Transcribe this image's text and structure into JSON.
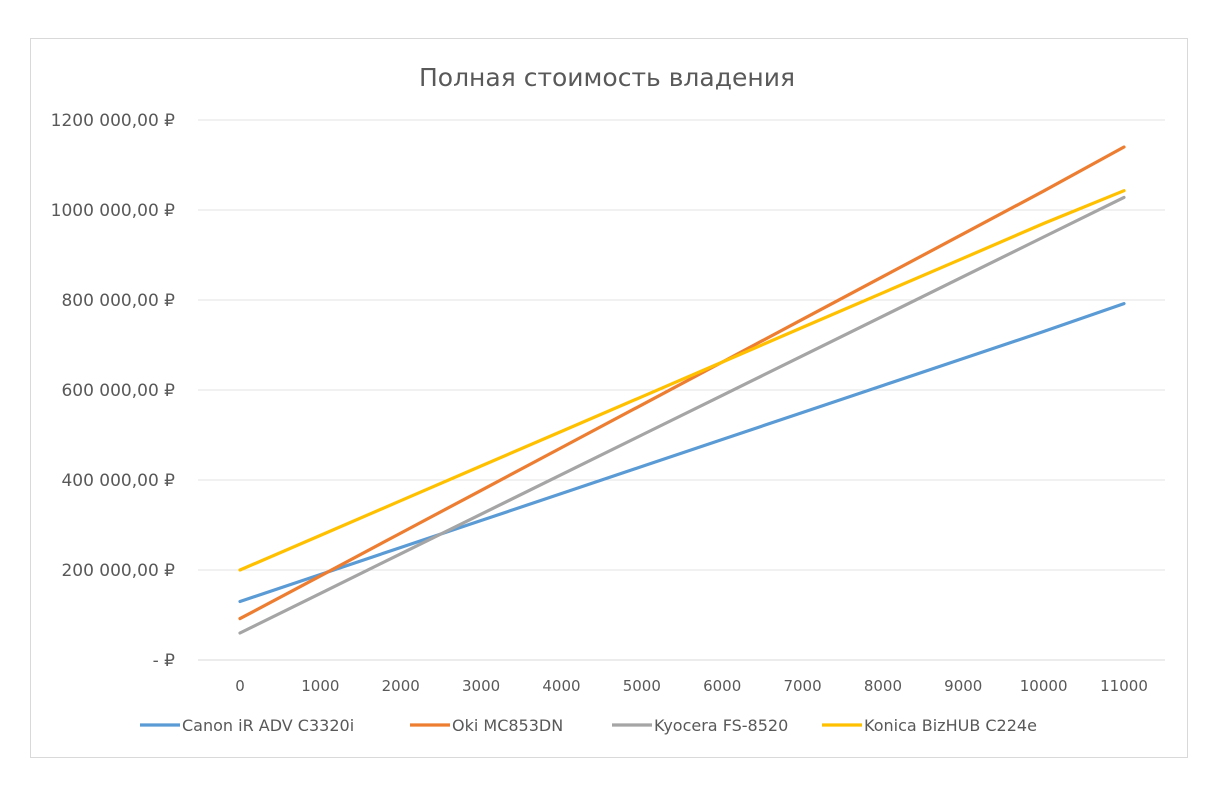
{
  "chart_data": {
    "type": "line",
    "title": "Полная стоимость владения",
    "xlabel": "",
    "ylabel": "",
    "x": [
      0,
      1000,
      2000,
      3000,
      4000,
      5000,
      6000,
      7000,
      8000,
      9000,
      10000,
      11000
    ],
    "x_tick_labels": [
      "0",
      "1000",
      "2000",
      "3000",
      "4000",
      "5000",
      "6000",
      "7000",
      "8000",
      "9000",
      "10000",
      "11000"
    ],
    "ylim": [
      0,
      1200000
    ],
    "y_ticks": [
      0,
      200000,
      400000,
      600000,
      800000,
      1000000,
      1200000
    ],
    "y_tick_labels": [
      "-  ₽",
      "200 000,00 ₽",
      "400 000,00 ₽",
      "600 000,00 ₽",
      "800 000,00 ₽",
      "1000 000,00 ₽",
      "1200 000,00 ₽"
    ],
    "grid": true,
    "legend_position": "bottom",
    "series": [
      {
        "name": "Canon iR ADV C3320i",
        "color": "#5b9bd5",
        "values": [
          130000,
          190000,
          250000,
          310000,
          370000,
          430000,
          490000,
          550000,
          610000,
          670000,
          730000,
          792000
        ]
      },
      {
        "name": "Oki MC853DN",
        "color": "#ed7d31",
        "values": [
          92000,
          187000,
          282000,
          377000,
          472000,
          567000,
          662000,
          757000,
          852000,
          947000,
          1042000,
          1140000
        ]
      },
      {
        "name": "Kyocera FS-8520",
        "color": "#a5a5a5",
        "values": [
          60000,
          148000,
          236000,
          324000,
          412000,
          500000,
          588000,
          676000,
          764000,
          852000,
          940000,
          1028000
        ]
      },
      {
        "name": "Konica BizHUB C224e",
        "color": "#ffc000",
        "values": [
          200000,
          277000,
          354000,
          431000,
          508000,
          585000,
          662000,
          739000,
          816000,
          893000,
          970000,
          1043000
        ]
      }
    ]
  }
}
